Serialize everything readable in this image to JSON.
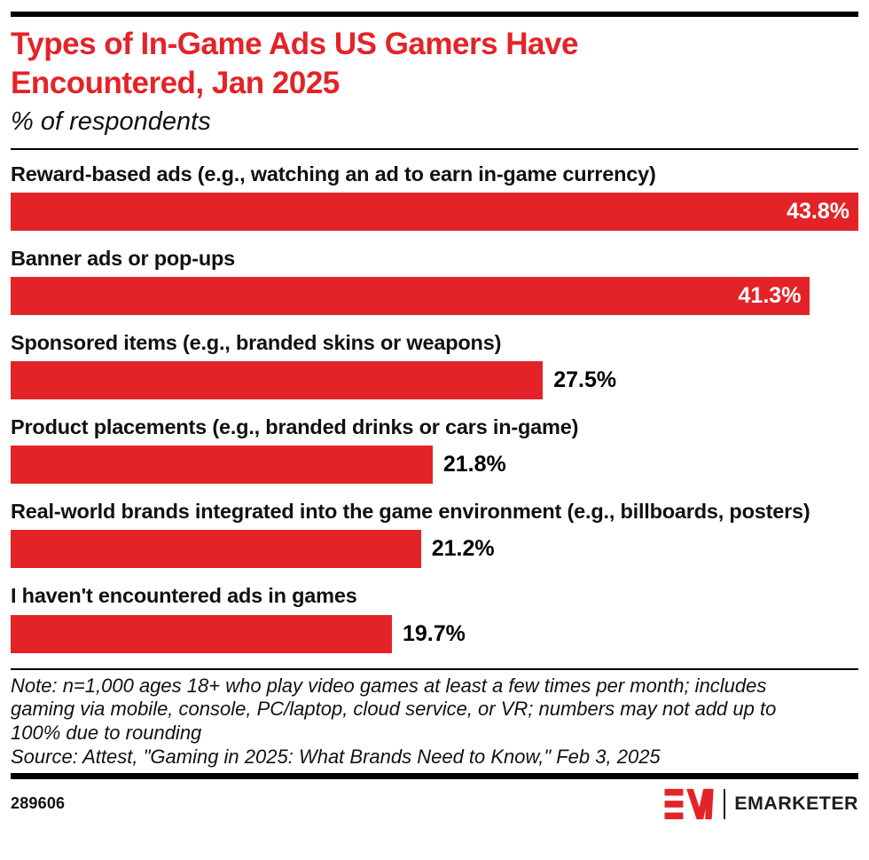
{
  "header": {
    "title": "Types of In-Game Ads US Gamers Have Encountered, Jan 2025",
    "subtitle": "% of respondents"
  },
  "chart_data": {
    "type": "bar",
    "orientation": "horizontal",
    "title": "Types of In-Game Ads US Gamers Have Encountered, Jan 2025",
    "subtitle": "% of respondents",
    "categories": [
      "Reward-based ads (e.g., watching an ad to earn in-game currency)",
      "Banner ads or pop-ups",
      "Sponsored items (e.g., branded skins or weapons)",
      "Product placements (e.g., branded drinks or cars in-game)",
      "Real-world brands integrated into the game environment (e.g., billboards, posters)",
      "I haven't encountered ads in games"
    ],
    "values": [
      43.8,
      41.3,
      27.5,
      21.8,
      21.2,
      19.7
    ],
    "value_labels": [
      "43.8%",
      "41.3%",
      "27.5%",
      "21.8%",
      "21.2%",
      "19.7%"
    ],
    "value_inside": [
      true,
      true,
      false,
      false,
      false,
      false
    ],
    "xlim": [
      0,
      43.8
    ],
    "unit": "%",
    "bar_color": "#e42328",
    "grid": false,
    "legend": false
  },
  "footnote": {
    "note": "Note: n=1,000 ages 18+ who play video games at least a few times per month; includes gaming via mobile, console, PC/laptop, cloud service, or VR; numbers may not add up to 100% due to rounding",
    "source": "Source: Attest, \"Gaming in 2025: What Brands Need to Know,\" Feb 3, 2025"
  },
  "footer": {
    "chart_id": "289606",
    "logo_mark": "EM",
    "logo_text": "EMARKETER"
  },
  "colors": {
    "accent_red": "#e42328",
    "rule_black": "#000000"
  }
}
